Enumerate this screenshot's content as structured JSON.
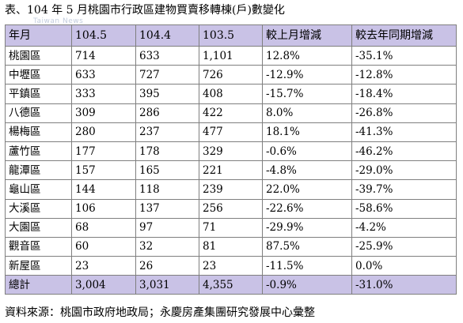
{
  "caption": "表、104 年 5 月桃園市行政區建物買賣移轉棟(戶)數變化",
  "watermark": "Taiwan News",
  "table": {
    "headers": [
      "年月",
      "104.5",
      "104.4",
      "103.5",
      "較上月增減",
      "較去年同期增減"
    ],
    "rows": [
      [
        "桃園區",
        "714",
        "633",
        "1,101",
        "12.8%",
        "-35.1%"
      ],
      [
        "中壢區",
        "633",
        "727",
        "726",
        "-12.9%",
        "-12.8%"
      ],
      [
        "平鎮區",
        "333",
        "395",
        "408",
        "-15.7%",
        "-18.4%"
      ],
      [
        "八德區",
        "309",
        "286",
        "422",
        "8.0%",
        "-26.8%"
      ],
      [
        "楊梅區",
        "280",
        "237",
        "477",
        "18.1%",
        "-41.3%"
      ],
      [
        "蘆竹區",
        "177",
        "178",
        "329",
        "-0.6%",
        "-46.2%"
      ],
      [
        "龍潭區",
        "157",
        "165",
        "221",
        "-4.8%",
        "-29.0%"
      ],
      [
        "龜山區",
        "144",
        "118",
        "239",
        "22.0%",
        "-39.7%"
      ],
      [
        "大溪區",
        "106",
        "137",
        "256",
        "-22.6%",
        "-58.6%"
      ],
      [
        "大園區",
        "68",
        "97",
        "71",
        "-29.9%",
        "-4.2%"
      ],
      [
        "觀音區",
        "60",
        "32",
        "81",
        "87.5%",
        "-25.9%"
      ],
      [
        "新屋區",
        "23",
        "26",
        "23",
        "-11.5%",
        "0.0%"
      ]
    ],
    "total": [
      "總計",
      "3,004",
      "3,031",
      "4,355",
      "-0.9%",
      "-31.0%"
    ]
  },
  "footnote": "資料來源：桃園市政府地政局；永慶房產集團研究發展中心彙整"
}
